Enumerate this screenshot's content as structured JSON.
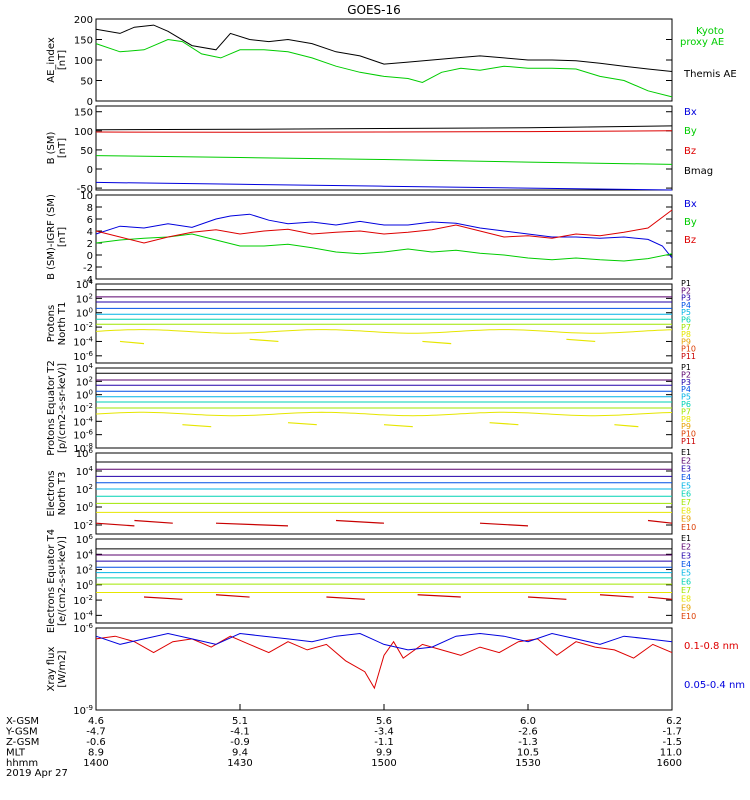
{
  "title": "GOES-16",
  "colors": {
    "black": "#000000",
    "blue": "#0000dd",
    "green": "#00cc00",
    "red": "#dd0000",
    "P1": "#000000",
    "P2": "#5a006e",
    "P3": "#2200aa",
    "P4": "#0050e6",
    "P5": "#00b4e6",
    "P6": "#00d2b4",
    "P7": "#a0e600",
    "P8": "#e6e600",
    "P9": "#e6a000",
    "P10": "#dc3c00",
    "P11": "#c80000"
  },
  "chart_data": [
    {
      "type": "line",
      "ylabel": "AE_index [nT]",
      "yticks": [
        "200",
        "150",
        "100",
        "50",
        "0"
      ],
      "ylim": [
        0,
        200
      ],
      "series": [
        {
          "name": "Kyoto proxy AE",
          "color": "green",
          "x": [
            1400,
            1405,
            1410,
            1415,
            1418,
            1422,
            1426,
            1430,
            1435,
            1440,
            1445,
            1450,
            1455,
            1500,
            1505,
            1508,
            1512,
            1516,
            1520,
            1525,
            1530,
            1535,
            1540,
            1545,
            1550,
            1555,
            1600
          ],
          "y": [
            140,
            120,
            125,
            150,
            145,
            115,
            105,
            125,
            125,
            120,
            105,
            85,
            70,
            60,
            55,
            45,
            70,
            80,
            75,
            85,
            80,
            80,
            78,
            60,
            50,
            25,
            10
          ]
        },
        {
          "name": "Themis AE",
          "color": "black",
          "x": [
            1400,
            1405,
            1408,
            1412,
            1415,
            1420,
            1425,
            1428,
            1432,
            1436,
            1440,
            1445,
            1450,
            1455,
            1500,
            1505,
            1510,
            1515,
            1520,
            1525,
            1530,
            1535,
            1540,
            1545,
            1550,
            1555,
            1600
          ],
          "y": [
            175,
            165,
            180,
            185,
            170,
            135,
            125,
            165,
            150,
            145,
            150,
            140,
            120,
            110,
            90,
            95,
            100,
            105,
            110,
            105,
            100,
            100,
            98,
            92,
            85,
            78,
            72
          ]
        }
      ]
    },
    {
      "type": "line",
      "ylabel": "B (SM) [nT]",
      "yticks": [
        "150",
        "100",
        "50",
        "0",
        "-50"
      ],
      "ylim": [
        -55,
        165
      ],
      "series": [
        {
          "name": "Bx",
          "color": "blue",
          "x": [
            1400,
            1430,
            1500,
            1530,
            1600
          ],
          "y": [
            -35,
            -40,
            -45,
            -50,
            -55
          ]
        },
        {
          "name": "By",
          "color": "green",
          "x": [
            1400,
            1430,
            1500,
            1530,
            1600
          ],
          "y": [
            35,
            30,
            25,
            18,
            12
          ]
        },
        {
          "name": "Bz",
          "color": "red",
          "x": [
            1400,
            1430,
            1500,
            1530,
            1600
          ],
          "y": [
            97,
            96,
            97,
            98,
            100
          ]
        },
        {
          "name": "Bmag",
          "color": "black",
          "x": [
            1400,
            1430,
            1500,
            1530,
            1600
          ],
          "y": [
            103,
            104,
            106,
            108,
            113
          ]
        }
      ]
    },
    {
      "type": "line",
      "ylabel": "B (SM)-IGRF (SM) [nT]",
      "yticks": [
        "10",
        "8",
        "6",
        "4",
        "2",
        "0",
        "-2",
        "-4"
      ],
      "ylim": [
        -4,
        10
      ],
      "series": [
        {
          "name": "Bx",
          "color": "blue",
          "x": [
            1400,
            1405,
            1410,
            1415,
            1420,
            1425,
            1428,
            1432,
            1436,
            1440,
            1445,
            1450,
            1455,
            1500,
            1505,
            1510,
            1515,
            1520,
            1525,
            1530,
            1535,
            1540,
            1545,
            1550,
            1555,
            1558,
            1600
          ],
          "y": [
            3.5,
            4.8,
            4.5,
            5.2,
            4.6,
            6.0,
            6.5,
            6.8,
            5.8,
            5.2,
            5.5,
            5.0,
            5.6,
            5.0,
            5.0,
            5.5,
            5.3,
            4.5,
            4.0,
            3.5,
            3.0,
            3.0,
            2.8,
            3.0,
            2.6,
            1.5,
            -0.5
          ]
        },
        {
          "name": "By",
          "color": "green",
          "x": [
            1400,
            1405,
            1410,
            1415,
            1420,
            1425,
            1430,
            1435,
            1440,
            1445,
            1450,
            1455,
            1500,
            1505,
            1510,
            1515,
            1520,
            1525,
            1530,
            1535,
            1540,
            1545,
            1550,
            1555,
            1600
          ],
          "y": [
            2.0,
            2.5,
            2.8,
            3.0,
            3.5,
            2.5,
            1.5,
            1.5,
            1.8,
            1.2,
            0.5,
            0.2,
            0.5,
            1.0,
            0.5,
            0.8,
            0.3,
            0.0,
            -0.5,
            -0.8,
            -0.5,
            -0.8,
            -1.0,
            -0.6,
            0.2
          ]
        },
        {
          "name": "Bz",
          "color": "red",
          "x": [
            1400,
            1405,
            1410,
            1415,
            1420,
            1425,
            1430,
            1435,
            1440,
            1445,
            1450,
            1455,
            1500,
            1505,
            1510,
            1515,
            1520,
            1525,
            1530,
            1535,
            1540,
            1545,
            1550,
            1555,
            1600
          ],
          "y": [
            4.0,
            3.0,
            2.0,
            3.0,
            3.8,
            4.2,
            3.5,
            4.0,
            4.3,
            3.5,
            3.8,
            4.0,
            3.5,
            3.8,
            4.2,
            5.0,
            4.0,
            3.0,
            3.2,
            2.8,
            3.5,
            3.2,
            3.8,
            4.5,
            7.5
          ]
        }
      ]
    },
    {
      "type": "line",
      "log": true,
      "ylabel": "Protons North T1",
      "yticks": [
        "10^4",
        "10^2",
        "10^0",
        "10^-2",
        "10^-4",
        "10^-6"
      ],
      "ylim_exp": [
        -7,
        4
      ],
      "legend": [
        "P1",
        "P2",
        "P3",
        "P4",
        "P5",
        "P6",
        "P7",
        "P8",
        "P9",
        "P10",
        "P11"
      ],
      "levels": [
        3.2,
        2.2,
        1.5,
        0.6,
        -0.2,
        -0.9,
        -1.6,
        -2.6,
        null,
        null,
        null
      ],
      "wavy": 7,
      "segments": {
        "color": "P8",
        "level": -4.0,
        "x": [
          [
            1405,
            1410
          ],
          [
            1432,
            1438
          ],
          [
            1508,
            1514
          ],
          [
            1538,
            1544
          ]
        ]
      }
    },
    {
      "type": "line",
      "log": true,
      "ylabel": "Protons Equator T2 [p/(cm2-s-sr-keV)]",
      "yticks": [
        "10^4",
        "10^2",
        "10^0",
        "10^-2",
        "10^-4",
        "10^-6",
        "10^-8"
      ],
      "ylim_exp": [
        -8,
        4
      ],
      "legend": [
        "P1",
        "P2",
        "P3",
        "P4",
        "P5",
        "P6",
        "P7",
        "P8",
        "P9",
        "P10",
        "P11"
      ],
      "levels": [
        3.2,
        2.2,
        1.4,
        0.5,
        -0.3,
        -1.1,
        -2.0,
        -2.9,
        null,
        null,
        null
      ],
      "wavy": 7,
      "segments": {
        "color": "P8",
        "level": -4.5,
        "x": [
          [
            1418,
            1424
          ],
          [
            1440,
            1446
          ],
          [
            1500,
            1506
          ],
          [
            1522,
            1528
          ],
          [
            1548,
            1553
          ]
        ]
      }
    },
    {
      "type": "line",
      "log": true,
      "ylabel": "Electrons North T3",
      "yticks": [
        "10^6",
        "10^4",
        "10^2",
        "10^0",
        "10^-2"
      ],
      "ylim_exp": [
        -3,
        6
      ],
      "legend": [
        "E1",
        "E2",
        "E3",
        "E4",
        "E5",
        "E6",
        "E7",
        "E8",
        "E9",
        "E10"
      ],
      "levels": [
        5.0,
        4.2,
        3.4,
        2.7,
        2.0,
        1.2,
        0.4,
        -0.6,
        null,
        null
      ],
      "segments": {
        "color": "P11",
        "level": -1.8,
        "x": [
          [
            1400,
            1408
          ],
          [
            1408,
            1416
          ],
          [
            1425,
            1440
          ],
          [
            1450,
            1460
          ],
          [
            1520,
            1530
          ],
          [
            1555,
            1600
          ]
        ]
      }
    },
    {
      "type": "line",
      "log": true,
      "ylabel": "Electrons Equator T4 [e/(cm2-s-sr-keV)]",
      "yticks": [
        "10^6",
        "10^4",
        "10^2",
        "10^0",
        "10^-2",
        "10^-4"
      ],
      "ylim_exp": [
        -5,
        6
      ],
      "legend": [
        "E1",
        "E2",
        "E3",
        "E4",
        "E5",
        "E6",
        "E7",
        "E8",
        "E9",
        "E10"
      ],
      "levels": [
        4.7,
        3.9,
        3.1,
        2.3,
        1.6,
        0.9,
        0.1,
        -1.0,
        null,
        null
      ],
      "segments": {
        "color": "P11",
        "level": -1.6,
        "x": [
          [
            1410,
            1418
          ],
          [
            1425,
            1432
          ],
          [
            1448,
            1456
          ],
          [
            1507,
            1516
          ],
          [
            1530,
            1538
          ],
          [
            1545,
            1552
          ],
          [
            1555,
            1600
          ]
        ]
      }
    },
    {
      "type": "line",
      "log": true,
      "ylabel": "Xray flux [W/m2]",
      "yticks": [
        "10^-6",
        "10^-9"
      ],
      "ylim_exp": [
        -9,
        -6
      ],
      "series": [
        {
          "name": "0.1-0.8 nm",
          "color": "red",
          "x": [
            1400,
            1404,
            1408,
            1412,
            1416,
            1420,
            1424,
            1428,
            1432,
            1436,
            1440,
            1444,
            1448,
            1452,
            1456,
            1458,
            1500,
            1502,
            1504,
            1508,
            1512,
            1516,
            1520,
            1524,
            1528,
            1532,
            1536,
            1540,
            1544,
            1548,
            1552,
            1556,
            1600
          ],
          "y": [
            -6.4,
            -6.3,
            -6.5,
            -6.9,
            -6.5,
            -6.4,
            -6.7,
            -6.3,
            -6.6,
            -6.9,
            -6.5,
            -6.8,
            -6.6,
            -7.2,
            -7.6,
            -8.2,
            -7.0,
            -6.5,
            -7.1,
            -6.6,
            -6.8,
            -7.0,
            -6.7,
            -6.9,
            -6.5,
            -6.4,
            -7.0,
            -6.5,
            -6.7,
            -6.8,
            -7.1,
            -6.6,
            -6.9
          ]
        },
        {
          "name": "0.05-0.4 nm",
          "color": "blue",
          "x": [
            1400,
            1405,
            1410,
            1415,
            1420,
            1425,
            1430,
            1435,
            1440,
            1445,
            1450,
            1455,
            1500,
            1505,
            1510,
            1515,
            1520,
            1525,
            1530,
            1535,
            1540,
            1545,
            1550,
            1555,
            1600
          ],
          "y": [
            -6.3,
            -6.6,
            -6.4,
            -6.2,
            -6.4,
            -6.6,
            -6.2,
            -6.3,
            -6.4,
            -6.5,
            -6.3,
            -6.2,
            -6.6,
            -6.8,
            -6.7,
            -6.3,
            -6.2,
            -6.3,
            -6.5,
            -6.2,
            -6.4,
            -6.6,
            -6.3,
            -6.4,
            -6.5
          ]
        }
      ]
    }
  ],
  "axis": {
    "xlim": [
      1400,
      1600
    ],
    "rows": [
      {
        "label": "X-GSM",
        "values": [
          "4.6",
          "5.1",
          "5.6",
          "6.0",
          "6.2"
        ]
      },
      {
        "label": "Y-GSM",
        "values": [
          "-4.7",
          "-4.1",
          "-3.4",
          "-2.6",
          "-1.7"
        ]
      },
      {
        "label": "Z-GSM",
        "values": [
          "-0.6",
          "-0.9",
          "-1.1",
          "-1.3",
          "-1.5"
        ]
      },
      {
        "label": "MLT",
        "values": [
          "8.9",
          "9.4",
          "9.9",
          "10.5",
          "11.0"
        ]
      },
      {
        "label": "hhmm",
        "values": [
          "1400",
          "1430",
          "1500",
          "1530",
          "1600"
        ]
      }
    ],
    "date": "2019 Apr 27"
  }
}
